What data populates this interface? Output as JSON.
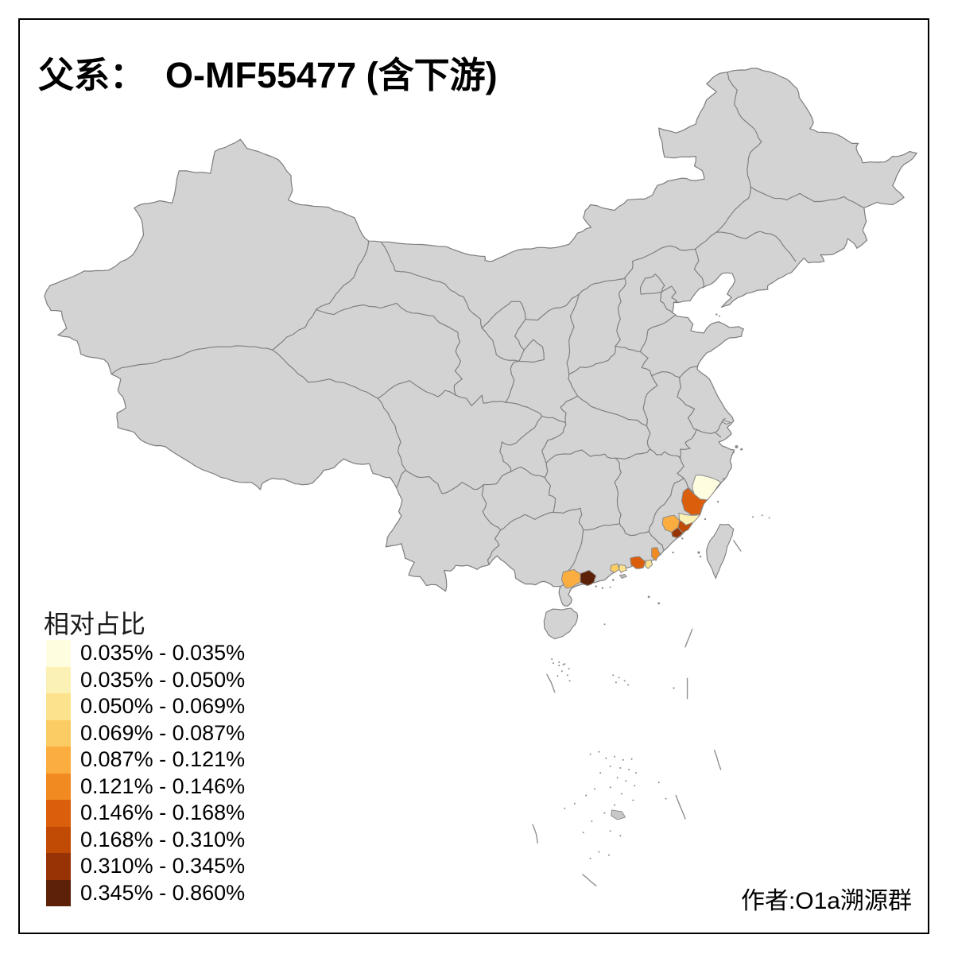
{
  "title": "父系：  O-MF55477 (含下游)",
  "legend": {
    "title": "相对占比",
    "items": [
      {
        "range": "0.035% - 0.035%",
        "color": "#FFFDE0"
      },
      {
        "range": "0.035% - 0.050%",
        "color": "#FBF1B4"
      },
      {
        "range": "0.050% - 0.069%",
        "color": "#FCE28C"
      },
      {
        "range": "0.069% - 0.087%",
        "color": "#FCCC64"
      },
      {
        "range": "0.087% - 0.121%",
        "color": "#FBAE3F"
      },
      {
        "range": "0.121% - 0.146%",
        "color": "#F08A21"
      },
      {
        "range": "0.146% - 0.168%",
        "color": "#DB5E0D"
      },
      {
        "range": "0.168% - 0.310%",
        "color": "#C14A04"
      },
      {
        "range": "0.310% - 0.345%",
        "color": "#983306"
      },
      {
        "range": "0.345% - 0.860%",
        "color": "#5C2106"
      }
    ]
  },
  "attribution": "作者:O1a溯源群",
  "map": {
    "background": "#FFFFFF",
    "land_color": "#D3D3D3",
    "border_color": "#7D7D7D",
    "frame_color": "#000000",
    "regions": [
      {
        "name": "highlighted-region-1",
        "color": "#FFFDE0"
      },
      {
        "name": "highlighted-region-2",
        "color": "#DB5E0D"
      },
      {
        "name": "highlighted-region-3",
        "color": "#FBF1B4"
      },
      {
        "name": "highlighted-region-4",
        "color": "#FBAE3F"
      },
      {
        "name": "highlighted-region-5",
        "color": "#C14A04"
      },
      {
        "name": "highlighted-region-6",
        "color": "#983306"
      },
      {
        "name": "highlighted-region-7",
        "color": "#F08A21"
      },
      {
        "name": "highlighted-region-8",
        "color": "#DB5E0D"
      },
      {
        "name": "highlighted-region-9",
        "color": "#FCE28C"
      },
      {
        "name": "highlighted-region-10",
        "color": "#FCCC64"
      },
      {
        "name": "highlighted-region-11",
        "color": "#FCE28C"
      },
      {
        "name": "highlighted-region-12",
        "color": "#FBAE3F"
      },
      {
        "name": "highlighted-region-13",
        "color": "#5C2106"
      }
    ]
  }
}
